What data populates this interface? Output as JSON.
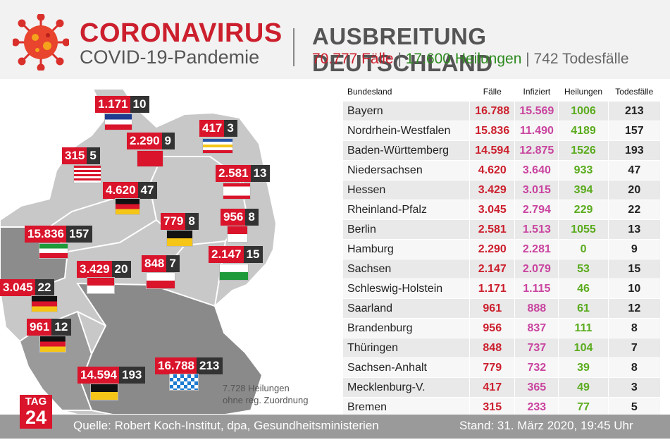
{
  "header": {
    "title": "CORONAVIRUS",
    "subtitle": "COVID-19-Pandemie",
    "right_title": "AUSBREITUNG DEUTSCHLAND",
    "stats": {
      "cases": "70.777 Fälle",
      "recovered": "17.600 Heilungen",
      "deaths": "742 Todesfälle",
      "sep": "|"
    }
  },
  "map": {
    "note_line1": "7.728 Heilungen",
    "note_line2": "ohne reg. Zuordnung",
    "labels": [
      {
        "state": "Schleswig-Holstein",
        "cases": "1.171",
        "deaths": "10"
      },
      {
        "state": "Mecklenburg-Vorpommern",
        "cases": "417",
        "deaths": "3"
      },
      {
        "state": "Hamburg",
        "cases": "2.290",
        "deaths": "9"
      },
      {
        "state": "Bremen",
        "cases": "315",
        "deaths": "5"
      },
      {
        "state": "Berlin",
        "cases": "2.581",
        "deaths": "13"
      },
      {
        "state": "Niedersachsen",
        "cases": "4.620",
        "deaths": "47"
      },
      {
        "state": "Sachsen-Anhalt",
        "cases": "779",
        "deaths": "8"
      },
      {
        "state": "Brandenburg",
        "cases": "956",
        "deaths": "8"
      },
      {
        "state": "Nordrhein-Westfalen",
        "cases": "15.836",
        "deaths": "157"
      },
      {
        "state": "Hessen",
        "cases": "3.429",
        "deaths": "20"
      },
      {
        "state": "Thüringen",
        "cases": "848",
        "deaths": "7"
      },
      {
        "state": "Sachsen",
        "cases": "2.147",
        "deaths": "15"
      },
      {
        "state": "Rheinland-Pfalz",
        "cases": "3.045",
        "deaths": "22"
      },
      {
        "state": "Saarland",
        "cases": "961",
        "deaths": "12"
      },
      {
        "state": "Baden-Württemberg",
        "cases": "14.594",
        "deaths": "193"
      },
      {
        "state": "Bayern",
        "cases": "16.788",
        "deaths": "213"
      }
    ]
  },
  "table": {
    "headers": [
      "Bundesland",
      "Fälle",
      "Infiziert",
      "Heilungen",
      "Todesfälle"
    ],
    "rows": [
      [
        "Bayern",
        "16.788",
        "15.569",
        "1006",
        "213"
      ],
      [
        "Nordrhein-Westfalen",
        "15.836",
        "11.490",
        "4189",
        "157"
      ],
      [
        "Baden-Württemberg",
        "14.594",
        "12.875",
        "1526",
        "193"
      ],
      [
        "Niedersachsen",
        "4.620",
        "3.640",
        "933",
        "47"
      ],
      [
        "Hessen",
        "3.429",
        "3.015",
        "394",
        "20"
      ],
      [
        "Rheinland-Pfalz",
        "3.045",
        "2.794",
        "229",
        "22"
      ],
      [
        "Berlin",
        "2.581",
        "1.513",
        "1055",
        "13"
      ],
      [
        "Hamburg",
        "2.290",
        "2.281",
        "0",
        "9"
      ],
      [
        "Sachsen",
        "2.147",
        "2.079",
        "53",
        "15"
      ],
      [
        "Schleswig-Holstein",
        "1.171",
        "1.115",
        "46",
        "10"
      ],
      [
        "Saarland",
        "961",
        "888",
        "61",
        "12"
      ],
      [
        "Brandenburg",
        "956",
        "837",
        "111",
        "8"
      ],
      [
        "Thüringen",
        "848",
        "737",
        "104",
        "7"
      ],
      [
        "Sachsen-Anhalt",
        "779",
        "732",
        "39",
        "8"
      ],
      [
        "Mecklenburg-V.",
        "417",
        "365",
        "49",
        "3"
      ],
      [
        "Bremen",
        "315",
        "233",
        "77",
        "5"
      ]
    ]
  },
  "footer": {
    "source": "Quelle: Robert Koch-Institut, dpa, Gesundheitsministerien",
    "stand": "Stand: 31. März 2020, 19:45 Uhr"
  },
  "logo": {
    "line1": "TAG",
    "line2": "24"
  },
  "colors": {
    "red": "#cc1f2d",
    "green": "#2d8a1f",
    "infected": "#c9449f",
    "recovered": "#5aab1d",
    "map_grey": "#c8c8c8",
    "footer": "#9a9a9a"
  }
}
